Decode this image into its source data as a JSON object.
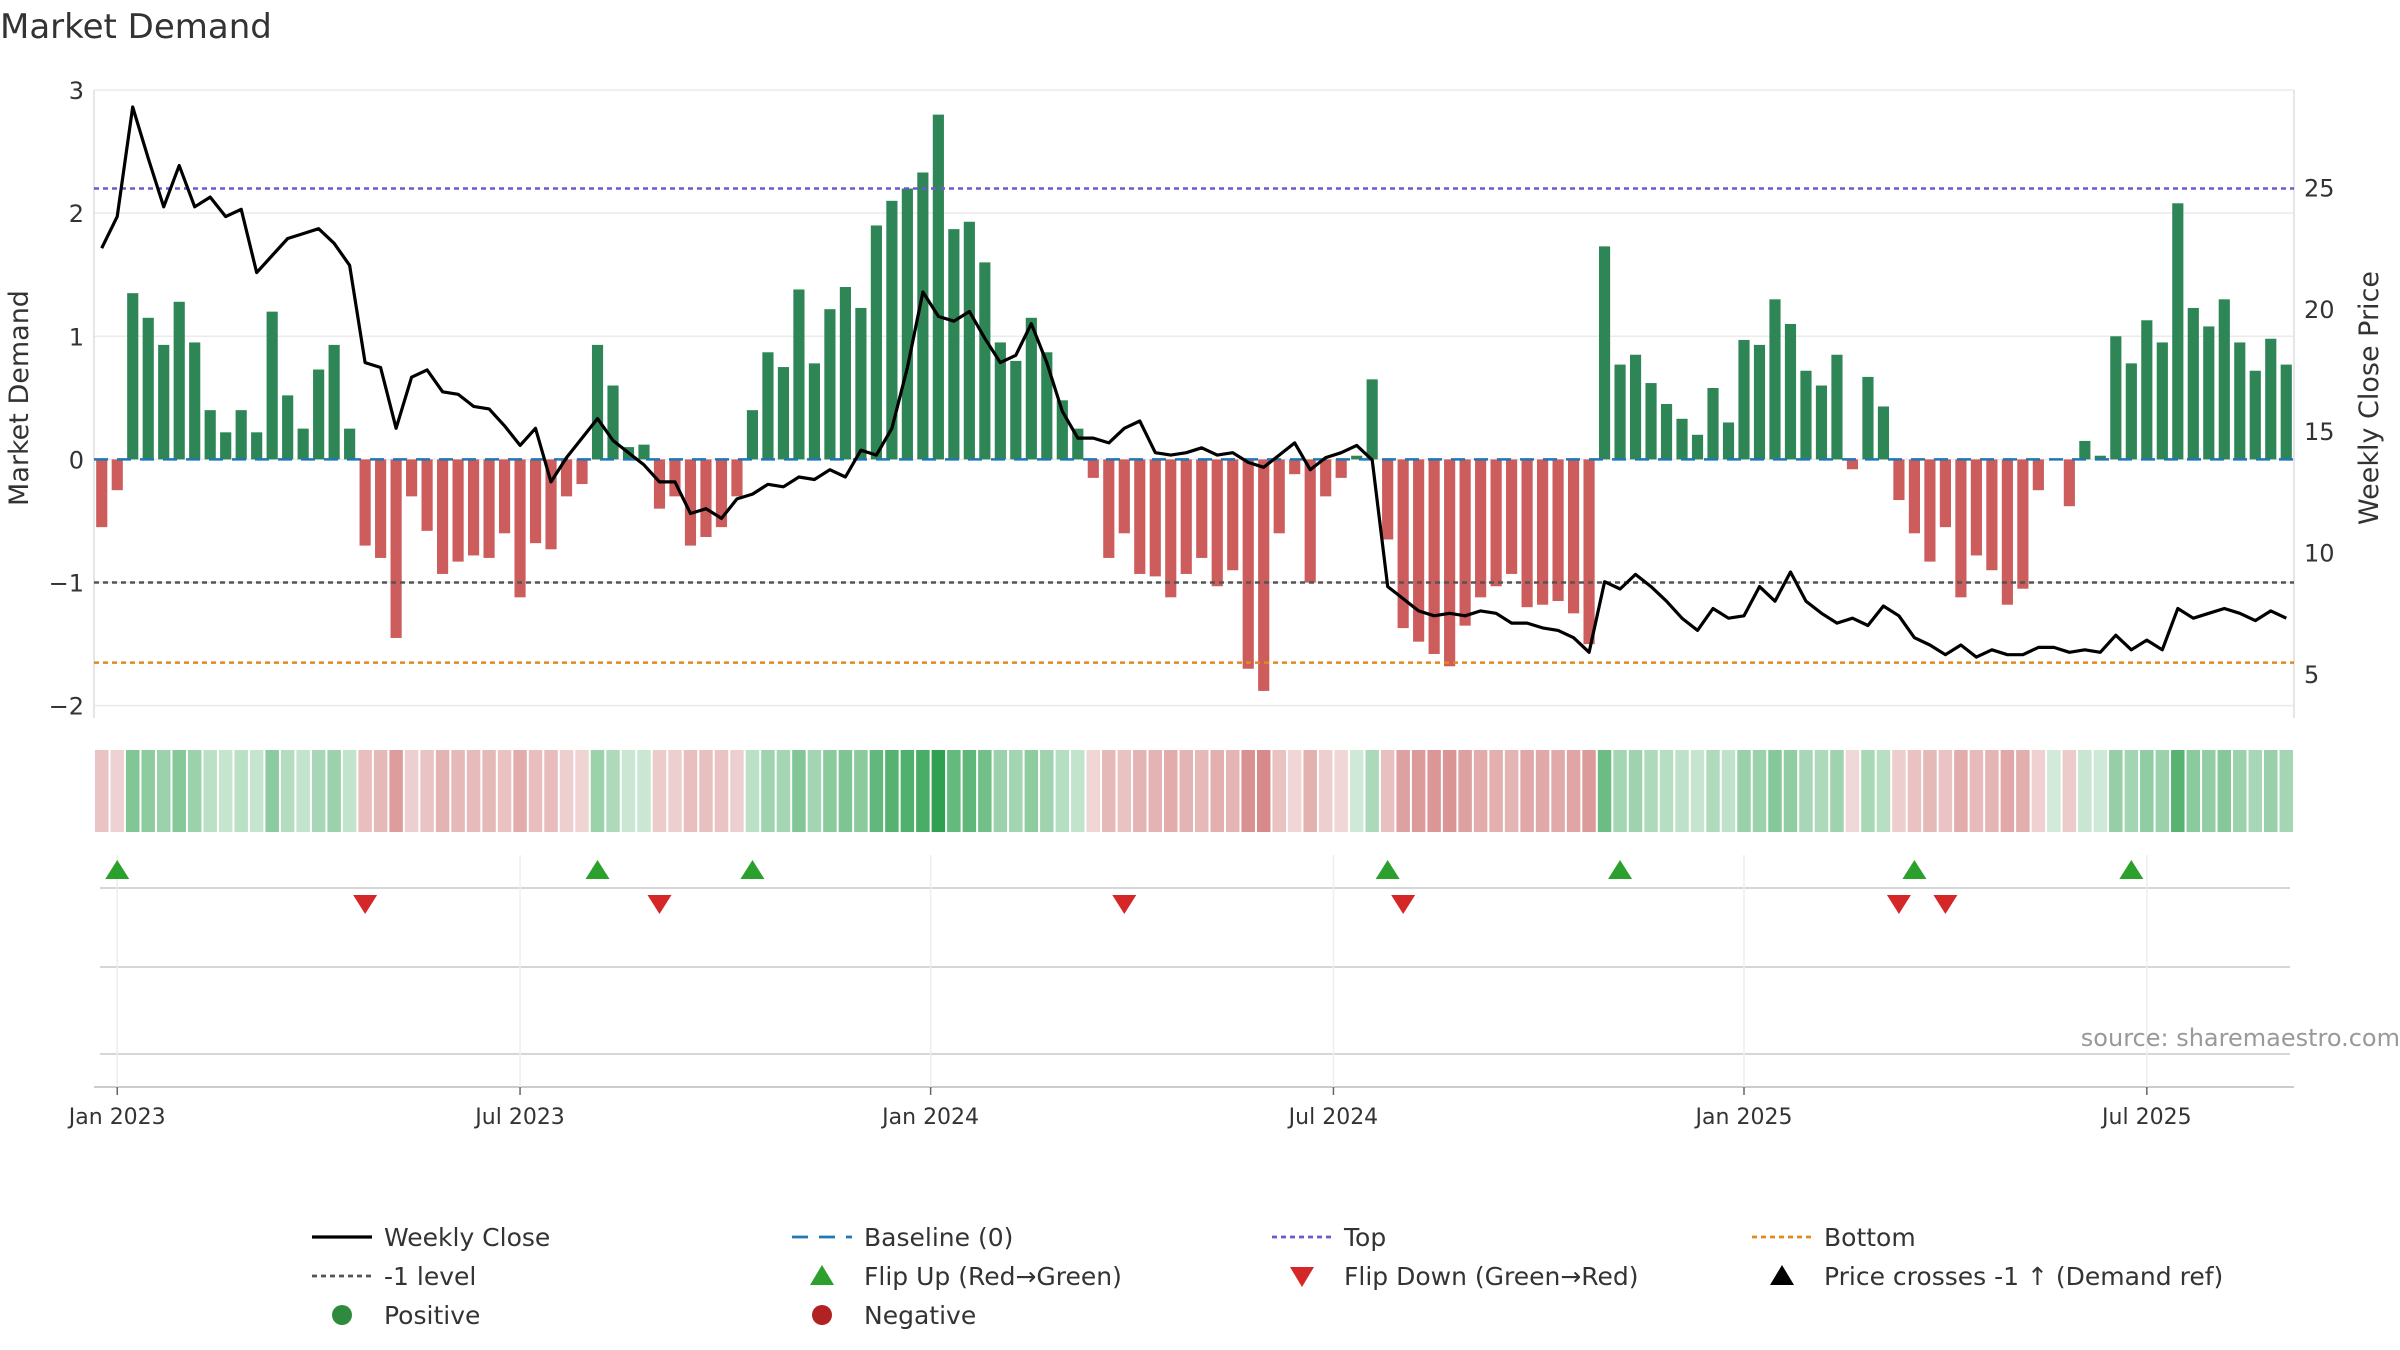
{
  "chart_data": {
    "type": "bar",
    "title": "Market Demand",
    "ylabel": "Market Demand",
    "y2label": "Weekly Close Price",
    "ylim": [
      -2.1,
      3.0
    ],
    "y2lim": [
      3.2,
      29.0
    ],
    "yticks": [
      {
        "value": 3,
        "label": "3"
      },
      {
        "value": 2,
        "label": "2"
      },
      {
        "value": 1,
        "label": "1"
      },
      {
        "value": 0,
        "label": "0"
      },
      {
        "value": -1,
        "label": "−1"
      },
      {
        "value": -2,
        "label": "−2"
      }
    ],
    "y2ticks": [
      {
        "value": 25,
        "label": "25"
      },
      {
        "value": 20,
        "label": "20"
      },
      {
        "value": 15,
        "label": "15"
      },
      {
        "value": 10,
        "label": "10"
      },
      {
        "value": 5,
        "label": "5"
      }
    ],
    "xticks": [
      {
        "index": 1,
        "label": "Jan 2023"
      },
      {
        "index": 27,
        "label": "Jul 2023"
      },
      {
        "index": 53.5,
        "label": "Jan 2024"
      },
      {
        "index": 79.5,
        "label": "Jul 2024"
      },
      {
        "index": 106,
        "label": "Jan 2025"
      },
      {
        "index": 132,
        "label": "Jul 2025"
      }
    ],
    "reference_lines": {
      "baseline": 0,
      "minus_one_level": -1,
      "top": 2.2,
      "bottom": -1.65
    },
    "demand": [
      -0.55,
      -0.25,
      1.35,
      1.15,
      0.93,
      1.28,
      0.95,
      0.4,
      0.22,
      0.4,
      0.22,
      1.2,
      0.52,
      0.25,
      0.73,
      0.93,
      0.25,
      -0.7,
      -0.8,
      -1.45,
      -0.3,
      -0.58,
      -0.93,
      -0.83,
      -0.78,
      -0.8,
      -0.6,
      -1.12,
      -0.68,
      -0.73,
      -0.3,
      -0.2,
      0.93,
      0.6,
      0.1,
      0.12,
      -0.4,
      -0.3,
      -0.7,
      -0.63,
      -0.55,
      -0.3,
      0.4,
      0.87,
      0.75,
      1.38,
      0.78,
      1.22,
      1.4,
      1.23,
      1.9,
      2.1,
      2.2,
      2.33,
      2.8,
      1.87,
      1.93,
      1.6,
      0.95,
      0.8,
      1.15,
      0.87,
      0.48,
      0.25,
      -0.15,
      -0.8,
      -0.6,
      -0.93,
      -0.95,
      -1.12,
      -0.93,
      -0.8,
      -1.03,
      -0.9,
      -1.7,
      -1.88,
      -0.6,
      -0.12,
      -1.0,
      -0.3,
      -0.15,
      0.03,
      0.65,
      -0.65,
      -1.37,
      -1.48,
      -1.58,
      -1.68,
      -1.35,
      -1.12,
      -1.03,
      -0.93,
      -1.2,
      -1.18,
      -1.15,
      -1.25,
      -1.5,
      1.73,
      0.77,
      0.85,
      0.62,
      0.45,
      0.33,
      0.2,
      0.58,
      0.3,
      0.97,
      0.93,
      1.3,
      1.1,
      0.72,
      0.6,
      0.85,
      -0.08,
      0.67,
      0.43,
      -0.33,
      -0.6,
      -0.83,
      -0.55,
      -1.12,
      -0.78,
      -0.9,
      -1.18,
      -1.05,
      -0.25,
      0,
      -0.38,
      0.15,
      0.03,
      1.0,
      0.78,
      1.13,
      0.95,
      2.08,
      1.23,
      1.08,
      1.3,
      0.95,
      0.72,
      0.98,
      0.77
    ],
    "close": [
      22.5,
      23.8,
      28.3,
      26.2,
      24.2,
      25.9,
      24.2,
      24.6,
      23.8,
      24.1,
      21.5,
      22.2,
      22.9,
      23.1,
      23.3,
      22.7,
      21.8,
      17.8,
      17.6,
      15.1,
      17.2,
      17.5,
      16.6,
      16.5,
      16.0,
      15.9,
      15.2,
      14.4,
      15.1,
      12.9,
      13.9,
      14.7,
      15.5,
      14.6,
      14.1,
      13.6,
      12.9,
      12.9,
      11.6,
      11.8,
      11.4,
      12.2,
      12.4,
      12.8,
      12.7,
      13.1,
      13.0,
      13.4,
      13.1,
      14.2,
      14.0,
      15.1,
      17.6,
      20.7,
      19.7,
      19.5,
      19.9,
      18.8,
      17.8,
      18.1,
      19.4,
      17.8,
      15.8,
      14.7,
      14.7,
      14.5,
      15.1,
      15.4,
      14.1,
      14.0,
      14.1,
      14.3,
      14.0,
      14.1,
      13.7,
      13.5,
      14.0,
      14.5,
      13.4,
      13.9,
      14.1,
      14.4,
      13.8,
      8.6,
      8.1,
      7.6,
      7.4,
      7.5,
      7.4,
      7.6,
      7.5,
      7.1,
      7.1,
      6.9,
      6.8,
      6.5,
      5.9,
      8.8,
      8.5,
      9.1,
      8.6,
      8.0,
      7.3,
      6.8,
      7.7,
      7.3,
      7.4,
      8.6,
      8.0,
      9.2,
      8.0,
      7.5,
      7.1,
      7.3,
      7.0,
      7.8,
      7.4,
      6.5,
      6.2,
      5.8,
      6.2,
      5.7,
      6.0,
      5.8,
      5.8,
      6.1,
      6.1,
      5.9,
      6.0,
      5.9,
      6.6,
      6.0,
      6.4,
      6.0,
      7.7,
      7.3,
      7.5,
      7.7,
      7.5,
      7.2,
      7.6,
      7.3
    ],
    "flip_up_indices": [
      1,
      32,
      42,
      83,
      98,
      117,
      131
    ],
    "flip_down_indices": [
      17,
      36,
      66,
      84,
      116,
      119
    ],
    "legend": [
      {
        "label": "Weekly Close",
        "type": "line-solid",
        "color": "#000000"
      },
      {
        "label": "Baseline (0)",
        "type": "line-dash",
        "color": "#1f77b4"
      },
      {
        "label": "Top",
        "type": "line-dot",
        "color": "#6a5acd"
      },
      {
        "label": "Bottom",
        "type": "line-dot",
        "color": "#e08a1e"
      },
      {
        "label": "-1 level",
        "type": "line-dot",
        "color": "#555555"
      },
      {
        "label": "Flip Up (Red→Green)",
        "type": "triangle-up",
        "color": "#2ca02c"
      },
      {
        "label": "Flip Down (Green→Red)",
        "type": "triangle-down",
        "color": "#d62728"
      },
      {
        "label": "Price crosses -1 ↑ (Demand ref)",
        "type": "triangle-up",
        "color": "#000000"
      },
      {
        "label": "Positive",
        "type": "circle",
        "color": "#2e8b3e"
      },
      {
        "label": "Negative",
        "type": "circle",
        "color": "#b22222"
      }
    ],
    "source": "source: sharemaestro.com"
  },
  "colors": {
    "positive": "#2e8555",
    "negative": "#cd5c5c",
    "grid": "#e8e8e8"
  }
}
